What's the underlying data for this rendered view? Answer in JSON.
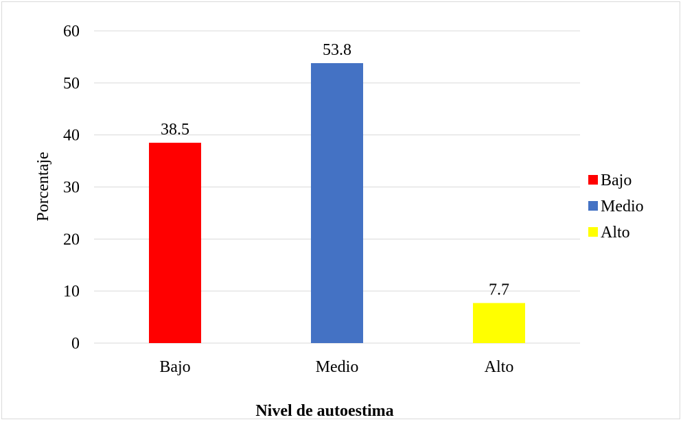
{
  "chart_data": {
    "type": "bar",
    "categories": [
      "Bajo",
      "Medio",
      "Alto"
    ],
    "values": [
      38.5,
      53.8,
      7.7
    ],
    "value_labels": [
      "38.5",
      "53.8",
      "7.7"
    ],
    "colors": [
      "#FF0000",
      "#4472C4",
      "#FFFF00"
    ],
    "title": "",
    "xlabel": "Nivel de autoestima",
    "ylabel": "Porcentaje",
    "ylim": [
      0,
      60
    ],
    "yticks": [
      0,
      10,
      20,
      30,
      40,
      50,
      60
    ],
    "grid": true,
    "legend": {
      "placement": "right",
      "items": [
        {
          "label": "Bajo",
          "color": "#FF0000"
        },
        {
          "label": "Medio",
          "color": "#4472C4"
        },
        {
          "label": "Alto",
          "color": "#FFFF00"
        }
      ]
    }
  }
}
